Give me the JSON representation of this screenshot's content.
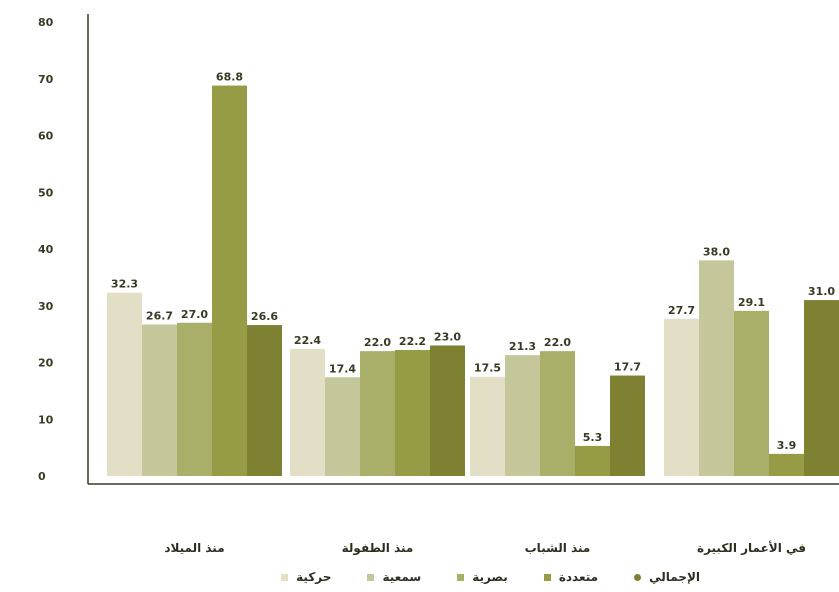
{
  "chart_data": {
    "type": "bar",
    "categories": [
      "في الأعمار الكبيرة",
      "منذ الشباب",
      "منذ الطفولة",
      "منذ الميلاد"
    ],
    "series": [
      {
        "name": "الإجمالي",
        "color": "#7f8132",
        "values": [
          31.0,
          17.7,
          23.0,
          26.6
        ]
      },
      {
        "name": "متعددة",
        "color": "#969c45",
        "values": [
          3.9,
          5.3,
          22.2,
          68.8
        ]
      },
      {
        "name": "بصرية",
        "color": "#a9ae68",
        "values": [
          29.1,
          22.0,
          22.0,
          27.0
        ]
      },
      {
        "name": "سمعية",
        "color": "#c5c79a",
        "values": [
          38.0,
          21.3,
          17.4,
          26.7
        ]
      },
      {
        "name": "حركية",
        "color": "#e3dfc7",
        "values": [
          27.7,
          17.5,
          22.4,
          32.3
        ]
      }
    ],
    "data_labels": [
      [
        "31.0",
        "17.7",
        "23.0",
        "26.6"
      ],
      [
        "3.9",
        "5.3",
        "22.2",
        "68.8"
      ],
      [
        "29.1",
        "22.0",
        "22.0",
        "27.0"
      ],
      [
        "38.0",
        "21.3",
        "17.4",
        "26.7"
      ],
      [
        "27.7",
        "17.5",
        "22.4",
        "32.3"
      ]
    ],
    "y_ticks": [
      "0",
      "10",
      "20",
      "30",
      "40",
      "50",
      "60",
      "70",
      "80"
    ],
    "ylim": [
      0,
      80
    ],
    "legend_position": "bottom",
    "grid": false
  }
}
